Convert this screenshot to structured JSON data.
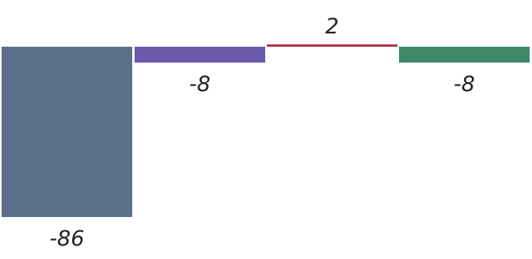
{
  "chart_data": {
    "type": "bar",
    "categories": [
      "",
      "",
      "",
      ""
    ],
    "values": [
      -86,
      -8,
      2,
      -8
    ],
    "data_labels": [
      "-86",
      "-8",
      "2",
      "-8"
    ],
    "colors": [
      "#5a7088",
      "#6b5aaa",
      "#b3344f",
      "#3e8a68"
    ],
    "title": "",
    "xlabel": "",
    "ylabel": "",
    "ylim": [
      -86,
      2
    ],
    "grid": false,
    "legend": "none"
  }
}
